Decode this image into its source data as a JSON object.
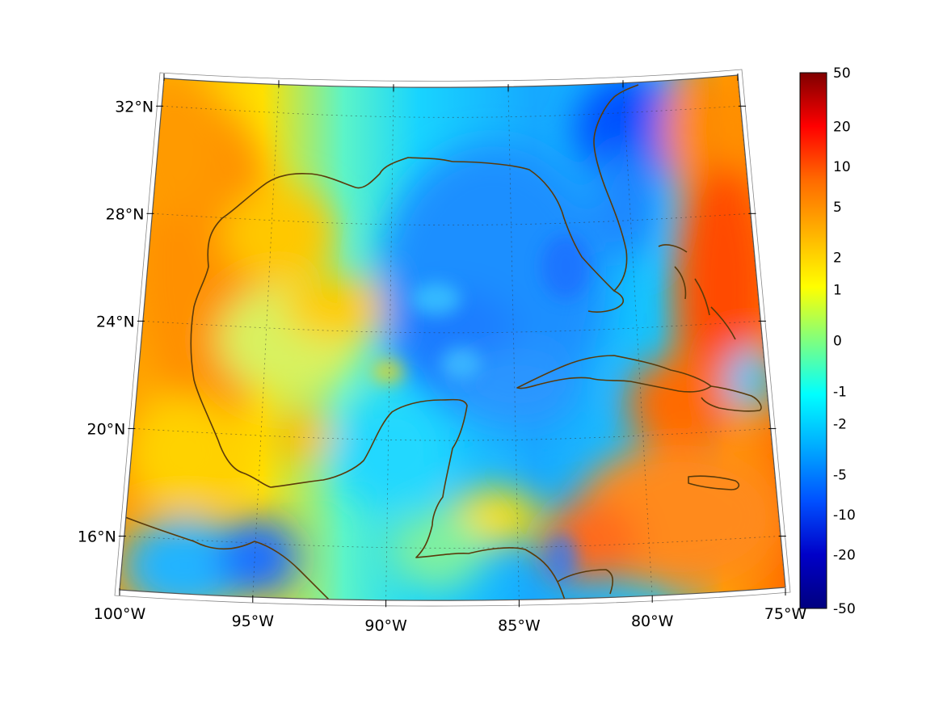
{
  "map": {
    "projection": "conic",
    "extent": {
      "lon": [
        -100,
        -75
      ],
      "lat": [
        14,
        33
      ]
    },
    "lon_ticks": [
      {
        "value": -100,
        "label": "100°W"
      },
      {
        "value": -95,
        "label": "95°W"
      },
      {
        "value": -90,
        "label": "90°W"
      },
      {
        "value": -85,
        "label": "85°W"
      },
      {
        "value": -80,
        "label": "80°W"
      },
      {
        "value": -75,
        "label": "75°W"
      }
    ],
    "lat_ticks": [
      {
        "value": 32,
        "label": "32°N"
      },
      {
        "value": 28,
        "label": "28°N"
      },
      {
        "value": 24,
        "label": "24°N"
      },
      {
        "value": 20,
        "label": "20°N"
      },
      {
        "value": 16,
        "label": "16°N"
      }
    ],
    "coastline_color": "#5a3a0a",
    "grid": true,
    "field_highlights": [
      {
        "region": "northwest-gulf",
        "color": "#ff8c00"
      },
      {
        "region": "central-gulf",
        "color": "#1e8fff"
      },
      {
        "region": "florida-east",
        "color": "#0050ff"
      },
      {
        "region": "bahamas",
        "color": "#ff4a00"
      },
      {
        "region": "caribbean",
        "color": "#ff8a1a"
      },
      {
        "region": "yucatan",
        "color": "#22d8ff"
      },
      {
        "region": "mexico-south",
        "color": "#ffd200"
      }
    ]
  },
  "colorbar": {
    "position": "right",
    "ticks": [
      "50",
      "20",
      "10",
      "5",
      "2",
      "1",
      "0",
      "-1",
      "-2",
      "-5",
      "-10",
      "-20",
      "-50"
    ],
    "colors": [
      "#7f0000",
      "#ff0000",
      "#ff6a00",
      "#ffb300",
      "#ffff00",
      "#7fff7f",
      "#00ffff",
      "#00aaff",
      "#0050ff",
      "#0000c8",
      "#00007f"
    ]
  }
}
